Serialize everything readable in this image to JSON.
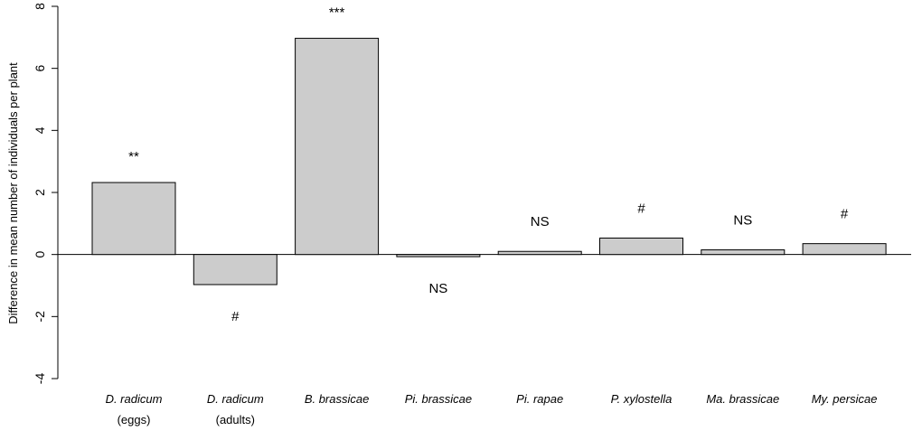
{
  "chart_data": {
    "type": "bar",
    "title": "",
    "xlabel": "",
    "ylabel": "Difference in mean number of individuals per plant",
    "ylim": [
      -4,
      8
    ],
    "yticks": [
      -4,
      -2,
      0,
      2,
      4,
      6,
      8
    ],
    "categories": [
      {
        "name": "D. radicum",
        "sub": "(eggs)"
      },
      {
        "name": "D. radicum",
        "sub": "(adults)"
      },
      {
        "name": "B. brassicae",
        "sub": ""
      },
      {
        "name": "Pi. brassicae",
        "sub": ""
      },
      {
        "name": "Pi. rapae",
        "sub": ""
      },
      {
        "name": "P. xylostella",
        "sub": ""
      },
      {
        "name": "Ma. brassicae",
        "sub": ""
      },
      {
        "name": "My. persicae",
        "sub": ""
      }
    ],
    "values": [
      2.32,
      -0.97,
      6.97,
      -0.07,
      0.1,
      0.53,
      0.15,
      0.35
    ],
    "annotations": [
      "**",
      "#",
      "***",
      "NS",
      "NS",
      "#",
      "NS",
      "#"
    ],
    "bar_color": "#cccccc",
    "grid": false,
    "legend": "none"
  }
}
